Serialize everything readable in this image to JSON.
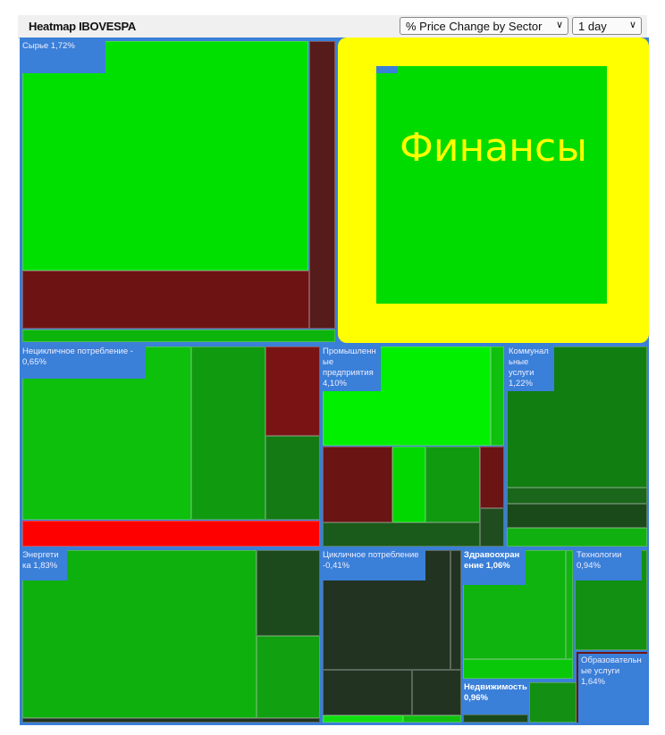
{
  "header": {
    "title": "Heatmap IBOVESPA",
    "metric_select": "% Price Change by Sector",
    "period_select": "1 day"
  },
  "sectors": {
    "raw": {
      "label": "Сырье  1,72%"
    },
    "finance": {
      "label": "Финансы"
    },
    "noncyclical": {
      "label": "Нецикличное потребление - 0,65%"
    },
    "industrial": {
      "label": "Промышленн ые предприятия 4,10%"
    },
    "utilities": {
      "label": "Коммунал ьные услуги 1,22%"
    },
    "energy": {
      "label": "Энергети ка 1,83%"
    },
    "cyclical": {
      "label": "Цикличное потребление -0,41%"
    },
    "health": {
      "label": "Здравоохран ение 1,06%"
    },
    "realestate": {
      "label": "Недвижимость 0,96%"
    },
    "tech": {
      "label": "Технологии 0,94%"
    },
    "education": {
      "label": "Образовательн ые услуги 1,64%"
    }
  },
  "colors": {
    "border": "#3a7fd8",
    "highlight": "#ffff00",
    "up_strong": "#00e000",
    "down": "#6e1313",
    "down_strong": "#ff0000"
  }
}
